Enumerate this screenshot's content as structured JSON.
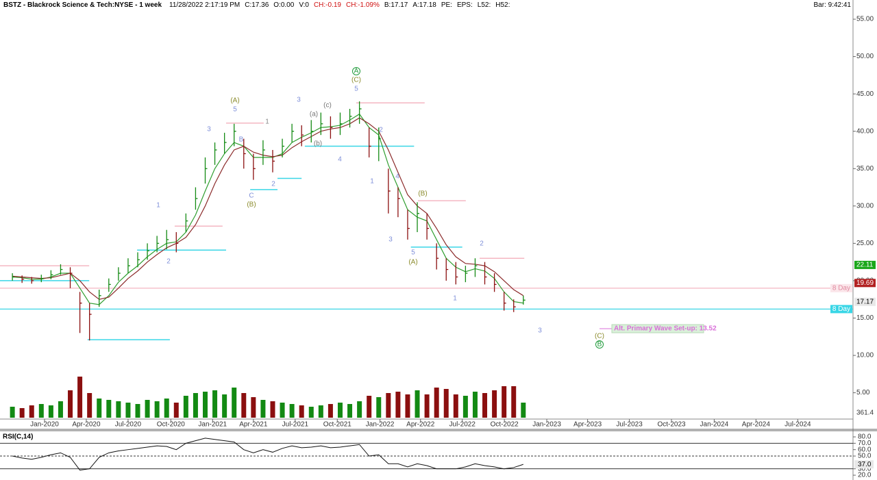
{
  "header": {
    "title": "BSTZ - Blackrock Science & Tech:NYSE - 1 week",
    "fields": [
      {
        "text": "11/28/2022 2:17:19 PM",
        "color": "#000000"
      },
      {
        "text": "C:17.36",
        "color": "#000000"
      },
      {
        "text": "O:0.00",
        "color": "#000000"
      },
      {
        "text": "V:0",
        "color": "#000000"
      },
      {
        "text": "CH:-0.19",
        "color": "#d01010"
      },
      {
        "text": "CH:-1.09%",
        "color": "#d01010"
      },
      {
        "text": "B:17.17",
        "color": "#000000"
      },
      {
        "text": "A:17.18",
        "color": "#000000"
      },
      {
        "text": "PE:",
        "color": "#000000"
      },
      {
        "text": "EPS:",
        "color": "#000000"
      },
      {
        "text": "L52:",
        "color": "#000000"
      },
      {
        "text": "H52:",
        "color": "#000000"
      }
    ],
    "bar": "Bar: 9:42:41"
  },
  "chart_data": [
    {
      "type": "ohlc",
      "x": [
        -10,
        -7,
        -4,
        -1,
        2,
        5,
        8,
        11,
        14,
        17,
        20,
        23,
        26,
        29,
        32,
        35,
        38,
        41,
        44,
        47,
        50,
        53,
        56,
        59,
        62,
        65,
        68,
        71,
        74,
        77,
        80,
        83,
        86,
        89,
        92,
        95,
        98,
        101,
        104,
        107,
        110,
        113,
        116,
        119,
        122,
        125,
        128,
        131,
        134,
        137,
        140,
        143,
        146,
        149
      ],
      "high": [
        21.0,
        20.7,
        20.5,
        20.8,
        21.4,
        22.2,
        21.8,
        18.5,
        17.0,
        18.8,
        20.3,
        21.8,
        23.0,
        23.8,
        25.0,
        26.0,
        26.8,
        26.5,
        29.0,
        32.5,
        36.5,
        38.5,
        39.8,
        41.0,
        39.0,
        37.0,
        38.8,
        37.5,
        39.0,
        41.0,
        40.8,
        41.5,
        42.5,
        42.0,
        42.5,
        43.0,
        44.0,
        40.5,
        40.5,
        35.0,
        32.5,
        29.5,
        30.5,
        29.0,
        25.0,
        23.0,
        22.5,
        22.0,
        23.0,
        22.5,
        21.0,
        18.5,
        17.5,
        18.0
      ],
      "low": [
        20.0,
        19.7,
        19.6,
        19.8,
        20.2,
        20.8,
        19.0,
        13.0,
        12.0,
        16.5,
        18.5,
        20.0,
        21.0,
        21.8,
        22.8,
        23.8,
        24.2,
        23.8,
        26.5,
        29.5,
        33.0,
        35.5,
        37.0,
        38.0,
        35.0,
        33.5,
        35.5,
        34.5,
        36.5,
        38.5,
        38.0,
        38.5,
        39.5,
        39.0,
        39.5,
        40.5,
        41.0,
        36.5,
        36.0,
        29.0,
        28.5,
        25.5,
        26.5,
        25.5,
        21.5,
        20.0,
        19.5,
        19.8,
        20.5,
        19.5,
        18.5,
        16.0,
        15.8,
        16.8
      ],
      "close": [
        20.5,
        20.2,
        20.0,
        20.3,
        20.8,
        21.5,
        21.0,
        17.0,
        15.5,
        18.0,
        19.5,
        21.0,
        22.0,
        22.8,
        24.0,
        25.0,
        25.5,
        25.0,
        28.0,
        31.0,
        35.0,
        37.5,
        38.5,
        40.0,
        37.0,
        35.0,
        37.5,
        36.0,
        38.0,
        40.0,
        39.5,
        40.0,
        41.0,
        40.5,
        41.0,
        42.0,
        43.0,
        38.0,
        39.0,
        32.0,
        31.0,
        27.0,
        29.0,
        27.0,
        23.0,
        21.5,
        20.5,
        21.0,
        22.0,
        20.5,
        19.5,
        17.0,
        16.5,
        17.4
      ],
      "volume": [
        800,
        700,
        900,
        1000,
        900,
        1200,
        2000,
        3000,
        1800,
        1400,
        1300,
        1200,
        1100,
        1000,
        1300,
        1200,
        1400,
        1100,
        1600,
        1800,
        1900,
        2000,
        1700,
        2200,
        1800,
        1500,
        1300,
        1200,
        1100,
        1000,
        900,
        800,
        900,
        1000,
        1100,
        1000,
        1200,
        1600,
        1500,
        1800,
        1900,
        1700,
        2000,
        1700,
        2200,
        2100,
        1700,
        1600,
        1900,
        1800,
        2000,
        2300,
        2300,
        1100
      ],
      "up_color": "#138a13",
      "down_color": "#8b0f0f",
      "series": [
        {
          "color": "#2f9e2f",
          "values": [
            20.5,
            20.4,
            20.2,
            20.2,
            20.5,
            21.0,
            21.0,
            19.0,
            17.0,
            16.8,
            18.0,
            19.8,
            21.0,
            22.0,
            23.2,
            24.2,
            25.0,
            25.2,
            26.5,
            28.8,
            32.0,
            35.0,
            37.0,
            38.5,
            38.0,
            36.5,
            36.5,
            36.5,
            37.0,
            38.5,
            39.2,
            39.8,
            40.5,
            40.6,
            40.8,
            41.5,
            42.3,
            40.5,
            39.5,
            35.5,
            32.5,
            29.5,
            28.5,
            28.0,
            25.5,
            23.0,
            21.8,
            21.2,
            21.6,
            21.3,
            20.3,
            18.5,
            17.2,
            17.0
          ]
        },
        {
          "color": "#8b2a2a",
          "values": [
            20.6,
            20.5,
            20.4,
            20.3,
            20.4,
            20.7,
            21.0,
            20.0,
            18.5,
            17.5,
            17.8,
            19.0,
            20.3,
            21.3,
            22.5,
            23.5,
            24.4,
            25.0,
            25.8,
            27.5,
            30.0,
            33.0,
            35.5,
            37.5,
            38.0,
            37.2,
            36.8,
            36.6,
            36.8,
            37.8,
            38.6,
            39.3,
            40.0,
            40.3,
            40.5,
            41.0,
            41.8,
            41.0,
            40.0,
            37.5,
            34.5,
            31.5,
            30.0,
            29.0,
            27.0,
            24.8,
            23.2,
            22.3,
            22.2,
            22.0,
            21.2,
            20.0,
            18.8,
            18.0
          ]
        }
      ],
      "xlim": [
        -13.86,
        251.6
      ],
      "xticks": [
        {
          "value": 0,
          "label": "Jan-2020"
        },
        {
          "value": 13,
          "label": "Apr-2020"
        },
        {
          "value": 26,
          "label": "Jul-2020"
        },
        {
          "value": 39.3,
          "label": "Oct-2020"
        },
        {
          "value": 52.3,
          "label": "Jan-2021"
        },
        {
          "value": 65,
          "label": "Apr-2021"
        },
        {
          "value": 78,
          "label": "Jul-2021"
        },
        {
          "value": 91.1,
          "label": "Oct-2021"
        },
        {
          "value": 104.4,
          "label": "Jan-2022"
        },
        {
          "value": 117,
          "label": "Apr-2022"
        },
        {
          "value": 130,
          "label": "Jul-2022"
        },
        {
          "value": 143.1,
          "label": "Oct-2022"
        },
        {
          "value": 156.3,
          "label": "Jan-2023"
        },
        {
          "value": 169,
          "label": "Apr-2023"
        },
        {
          "value": 182,
          "label": "Jul-2023"
        },
        {
          "value": 195.1,
          "label": "Oct-2023"
        },
        {
          "value": 208.4,
          "label": "Jan-2024"
        },
        {
          "value": 221.4,
          "label": "Apr-2024"
        },
        {
          "value": 234.4,
          "label": "Jul-2024"
        }
      ],
      "ylim": [
        1.48,
        57.57
      ],
      "yticks": [
        {
          "value": 55,
          "label": "55.00"
        },
        {
          "value": 50,
          "label": "50.00"
        },
        {
          "value": 45,
          "label": "45.00"
        },
        {
          "value": 40,
          "label": "40.00"
        },
        {
          "value": 35,
          "label": "35.00"
        },
        {
          "value": 30,
          "label": "30.00"
        },
        {
          "value": 25,
          "label": "25.00"
        },
        {
          "value": 20,
          "label": "20.00"
        },
        {
          "value": 15,
          "label": "15.00"
        },
        {
          "value": 10,
          "label": "10.00"
        },
        {
          "value": 5,
          "label": "5.00"
        }
      ],
      "vlim": [
        0,
        3600
      ],
      "vticks": [
        361.4
      ],
      "levels": [
        {
          "price": 41.1,
          "from": 56.5,
          "to": 68.2,
          "color": "#f4b6c2"
        },
        {
          "price": 43.8,
          "from": 97,
          "to": 118.3,
          "color": "#f4b6c2"
        },
        {
          "price": 30.7,
          "from": 116.2,
          "to": 131.1,
          "color": "#f4b6c2"
        },
        {
          "price": 23.0,
          "from": 135.4,
          "to": 149.3,
          "color": "#f4b6c2"
        },
        {
          "price": 22.0,
          "from": -13.86,
          "to": 13.9,
          "color": "#f4b6c2"
        },
        {
          "price": 27.3,
          "from": 40.5,
          "to": 55.4,
          "color": "#f4b6c2"
        },
        {
          "price": 20.0,
          "from": -13.86,
          "to": 13.9,
          "color": "#39d6e6"
        },
        {
          "price": 12.1,
          "from": 13.4,
          "to": 39,
          "color": "#39d6e6"
        },
        {
          "price": 24.1,
          "from": 28.8,
          "to": 56.5,
          "color": "#39d6e6"
        },
        {
          "price": 32.2,
          "from": 64,
          "to": 72.5,
          "color": "#39d6e6"
        },
        {
          "price": 33.7,
          "from": 72.5,
          "to": 80,
          "color": "#39d6e6"
        },
        {
          "price": 38.0,
          "from": 81,
          "to": 115,
          "color": "#39d6e6"
        },
        {
          "price": 24.5,
          "from": 114,
          "to": 130,
          "color": "#39d6e6"
        }
      ],
      "full_levels": [
        {
          "price": 19.0,
          "color": "#f4b6c2",
          "label": "8 Day"
        },
        {
          "price": 16.2,
          "color": "#39d6e6",
          "label": "8 Day"
        }
      ],
      "badges": [
        {
          "value": 22.11,
          "label": "22.11",
          "color": "#1aa71a"
        },
        {
          "value": 19.69,
          "label": "19.69",
          "color": "#b22222"
        },
        {
          "value": 17.17,
          "label": "17.17",
          "color": "#e8e8e8"
        }
      ],
      "annotations": [
        {
          "text": "A",
          "color": "#1f9a3a"
        },
        {
          "text": "(C)",
          "color": "#8a8a2a"
        },
        {
          "text": "5",
          "color": "#7e8fd9"
        },
        {
          "text": "(A)",
          "color": "#8a8a2a"
        },
        {
          "text": "5",
          "color": "#7e8fd9"
        },
        {
          "text": "3",
          "color": "#7e8fd9"
        },
        {
          "text": "B",
          "color": "#7e8fd9"
        },
        {
          "text": "C",
          "color": "#7e8fd9"
        },
        {
          "text": "(B)",
          "color": "#8a8a2a"
        },
        {
          "text": "2",
          "color": "#7e8fd9"
        },
        {
          "text": "3",
          "color": "#7e8fd9"
        },
        {
          "text": "1",
          "color": "#888888"
        },
        {
          "text": "4",
          "color": "#7e8fd9"
        },
        {
          "text": "2",
          "color": "#7e8fd9"
        },
        {
          "text": "1",
          "color": "#7e8fd9"
        },
        {
          "text": "4",
          "color": "#7e8fd9"
        },
        {
          "text": "(B)",
          "color": "#8a8a2a"
        },
        {
          "text": "3",
          "color": "#7e8fd9"
        },
        {
          "text": "5",
          "color": "#7e8fd9"
        },
        {
          "text": "(A)",
          "color": "#8a8a2a"
        },
        {
          "text": "2",
          "color": "#7e8fd9"
        },
        {
          "text": "1",
          "color": "#7e8fd9"
        },
        {
          "text": "3",
          "color": "#7e8fd9"
        },
        {
          "text": "(C)",
          "color": "#8a8a2a"
        },
        {
          "text": "B",
          "color": "#1f9a3a"
        },
        {
          "text": "1",
          "color": "#7e8fd9"
        },
        {
          "text": "2",
          "color": "#7e8fd9"
        },
        {
          "text": "(b)",
          "color": "#777777"
        },
        {
          "text": "(a)",
          "color": "#777777"
        },
        {
          "text": "(c)",
          "color": "#777777"
        }
      ],
      "alt_note": {
        "text": "Alt. Primary Wave Set-up: 13.52",
        "color": "#d86fd8"
      }
    },
    {
      "type": "line",
      "title": "RSI(C,14)",
      "color": "#111111",
      "values": [
        50,
        47,
        45,
        48,
        52,
        55,
        48,
        28,
        30,
        48,
        55,
        58,
        60,
        62,
        64,
        66,
        65,
        60,
        70,
        74,
        78,
        76,
        74,
        72,
        60,
        55,
        60,
        56,
        62,
        66,
        63,
        64,
        66,
        63,
        64,
        66,
        68,
        50,
        52,
        38,
        38,
        33,
        38,
        35,
        30,
        30,
        30,
        33,
        38,
        35,
        33,
        30,
        32,
        37
      ],
      "ylim": [
        16.8,
        88.6
      ],
      "yticks": [
        {
          "value": 80,
          "label": "80.0"
        },
        {
          "value": 70,
          "label": "70.0"
        },
        {
          "value": 60,
          "label": "60.0"
        },
        {
          "value": 50,
          "label": "50.0"
        },
        {
          "value": 30,
          "label": "30.0"
        },
        {
          "value": 20,
          "label": "20.0"
        }
      ],
      "ref_lines": [
        70,
        50,
        30
      ],
      "ref_dash": [
        false,
        true,
        false
      ],
      "badge": {
        "value": 37,
        "label": "37.0",
        "color": "#e8e8e8"
      }
    }
  ]
}
